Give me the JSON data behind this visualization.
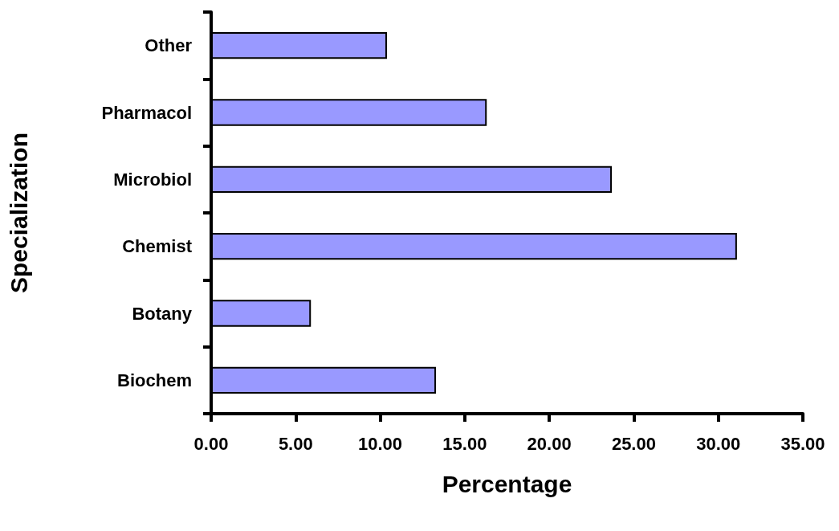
{
  "chart_data": {
    "type": "bar",
    "orientation": "horizontal",
    "xlabel": "Percentage",
    "ylabel": "Specialization",
    "categories": [
      "Other",
      "Pharmacol",
      "Microbiol",
      "Chemist",
      "Botany",
      "Biochem"
    ],
    "values": [
      10.4,
      16.3,
      23.7,
      31.1,
      5.9,
      13.3
    ],
    "color": "#9999ff",
    "xlim": [
      0,
      35
    ],
    "xticks": [
      {
        "value": 0,
        "label": "0.00"
      },
      {
        "value": 5,
        "label": "5.00"
      },
      {
        "value": 10,
        "label": "10.00"
      },
      {
        "value": 15,
        "label": "15.00"
      },
      {
        "value": 20,
        "label": "20.00"
      },
      {
        "value": 25,
        "label": "25.00"
      },
      {
        "value": 30,
        "label": "30.00"
      },
      {
        "value": 35,
        "label": "35.00"
      }
    ],
    "grid": false
  }
}
